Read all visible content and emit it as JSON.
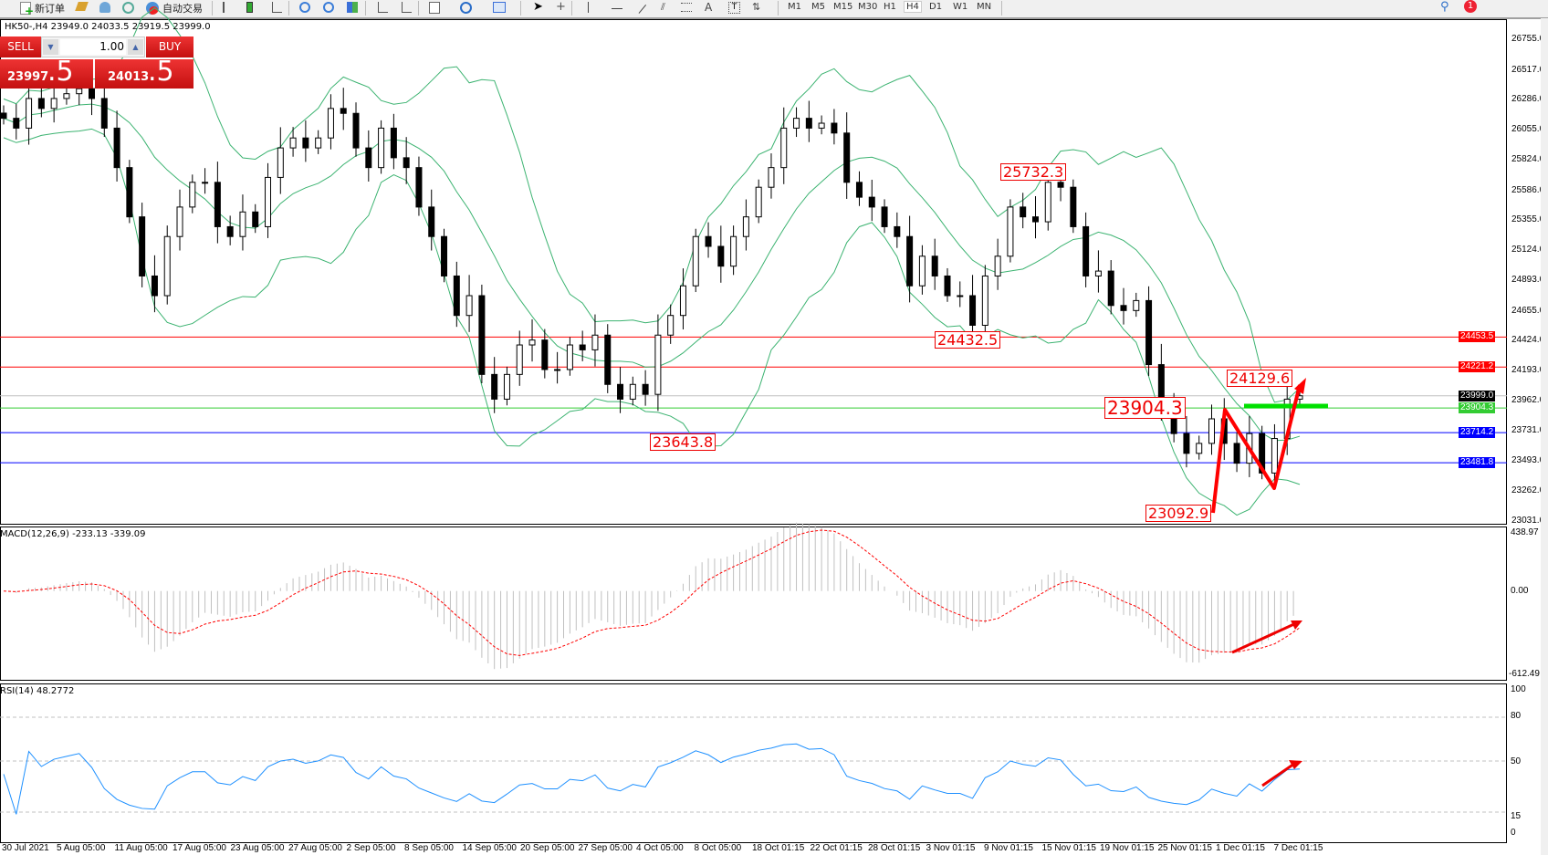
{
  "toolbar": {
    "new_order": "新订单",
    "auto_trading": "自动交易",
    "timeframes": [
      "M1",
      "M5",
      "M15",
      "M30",
      "H1",
      "H4",
      "D1",
      "W1",
      "MN"
    ],
    "active_timeframe": "H4",
    "notification_count": "1"
  },
  "chart": {
    "header": "HK50-,H4  23949.0 24033.5 23919.5 23999.0",
    "trade_panel": {
      "sell_label": "SELL",
      "buy_label": "BUY",
      "lot": "1.00",
      "sell_price_main": "23997",
      "sell_price_frac": ".5",
      "buy_price_main": "24013",
      "buy_price_frac": ".5"
    },
    "price_axis": [
      "26755.0",
      "26517.0",
      "26286.0",
      "26055.0",
      "25824.0",
      "25586.0",
      "25355.0",
      "25124.0",
      "24893.0",
      "24655.0",
      "24424.0",
      "24193.0",
      "23962.0",
      "23731.0",
      "23493.0",
      "23262.0",
      "23031.0"
    ],
    "price_range": [
      23031.0,
      26755.0
    ],
    "horizontal_lines": [
      {
        "value": 24453.5,
        "label": "24453.5",
        "color": "#ff0000"
      },
      {
        "value": 24221.2,
        "label": "24221.2",
        "color": "#ff0000"
      },
      {
        "value": 23999.0,
        "label": "23999.0",
        "color": "#c0c0c0",
        "tag_color": "#000000"
      },
      {
        "value": 23904.3,
        "label": "23904.3",
        "color": "#33cc33"
      },
      {
        "value": 23714.2,
        "label": "23714.2",
        "color": "#0000ff"
      },
      {
        "value": 23481.8,
        "label": "23481.8",
        "color": "#0000ff"
      }
    ],
    "annotations": [
      "25732.3",
      "24432.5",
      "24129.6",
      "23904.3",
      "23643.8",
      "23092.9"
    ],
    "closes": [
      26144,
      26068,
      26297,
      26220,
      26297,
      26334,
      26373,
      26297,
      26068,
      25763,
      25382,
      24925,
      24773,
      25230,
      25458,
      25649,
      25649,
      25306,
      25230,
      25420,
      25306,
      25687,
      25915,
      25992,
      25915,
      25992,
      26220,
      26182,
      25915,
      25763,
      26068,
      25839,
      25763,
      25458,
      25230,
      24925,
      24620,
      24773,
      24164,
      23973,
      24164,
      24392,
      24430,
      24202,
      24202,
      24392,
      24354,
      24468,
      24087,
      23973,
      24087,
      24010,
      24468,
      24620,
      24849,
      25230,
      25154,
      25001,
      25230,
      25382,
      25611,
      25763,
      26068,
      26144,
      26068,
      26106,
      26030,
      25649,
      25534,
      25458,
      25306,
      25230,
      24849,
      25078,
      24925,
      24773,
      24773,
      24544,
      24925,
      25078,
      25458,
      25382,
      25344,
      25649,
      25611,
      25306,
      24925,
      24963,
      24697,
      24658,
      24735,
      24240,
      23935,
      23707,
      23554,
      23631,
      23821,
      23631,
      23478,
      23707,
      23402,
      23669,
      23973,
      23999
    ],
    "colors": {
      "bands": "#3cb371",
      "bull": "#ffffff",
      "bear": "#000000",
      "annotation": "#ff0000",
      "marker_line": "#00e000"
    }
  },
  "macd": {
    "label": "MACD(12,26,9) -233.13 -339.09",
    "axis": [
      "438.97",
      "0.00",
      "-612.49"
    ],
    "range": [
      -612.49,
      438.97
    ],
    "colors": {
      "histogram": "#c0c0c0",
      "signal": "#ff0000"
    }
  },
  "rsi": {
    "label": "RSI(14) 48.2772",
    "axis": [
      "100",
      "80",
      "50",
      "15",
      "0"
    ],
    "levels": [
      80,
      50,
      15
    ],
    "color": "#1e90ff"
  },
  "time_axis": [
    "30 Jul 2021",
    "5 Aug 05:00",
    "11 Aug 05:00",
    "17 Aug 05:00",
    "23 Aug 05:00",
    "27 Aug 05:00",
    "2 Sep 05:00",
    "8 Sep 05:00",
    "14 Sep 05:00",
    "20 Sep 05:00",
    "27 Sep 05:00",
    "4 Oct 05:00",
    "8 Oct 05:00",
    "18 Oct 01:15",
    "22 Oct 01:15",
    "28 Oct 01:15",
    "3 Nov 01:15",
    "9 Nov 01:15",
    "15 Nov 01:15",
    "19 Nov 01:15",
    "25 Nov 01:15",
    "1 Dec 01:15",
    "7 Dec 01:15"
  ]
}
